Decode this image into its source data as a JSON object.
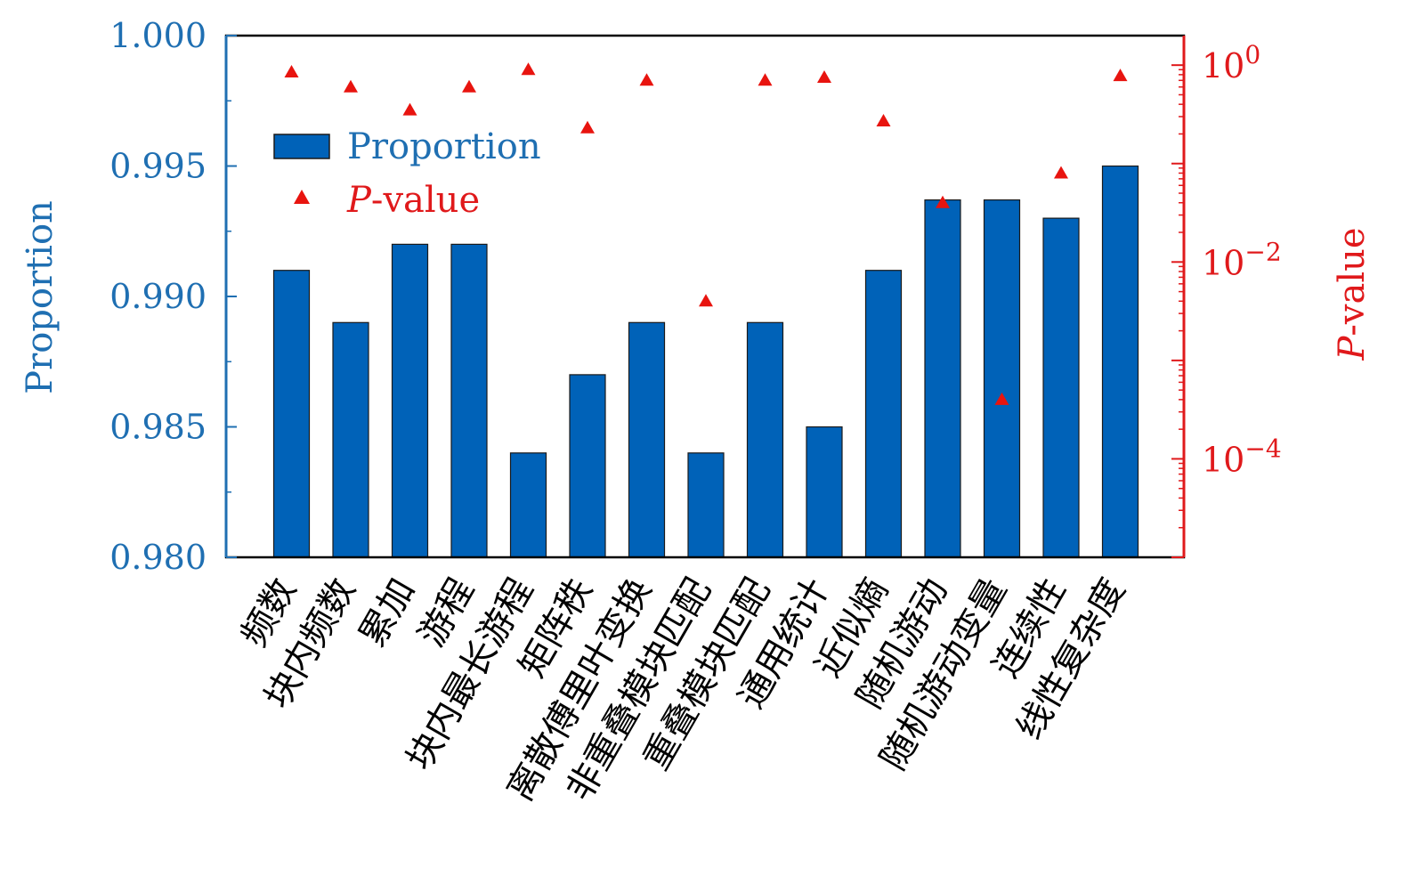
{
  "chart_data": {
    "type": "bar",
    "categories": [
      "频数",
      "块内频数",
      "累加",
      "游程",
      "块内最长游程",
      "矩阵秩",
      "离散傅里叶变换",
      "非重叠模块匹配",
      "重叠模块匹配",
      "通用统计",
      "近似熵",
      "随机游动",
      "随机游动变量",
      "连续性",
      "线性复杂度"
    ],
    "series": [
      {
        "name": "Proportion",
        "type": "bar",
        "axis": "left",
        "values": [
          0.991,
          0.989,
          0.992,
          0.992,
          0.984,
          0.987,
          0.989,
          0.984,
          0.989,
          0.985,
          0.991,
          0.9937,
          0.9937,
          0.993,
          0.995
        ]
      },
      {
        "name": "P-value",
        "type": "scatter",
        "axis": "right",
        "values": [
          0.85,
          0.6,
          0.35,
          0.6,
          0.9,
          0.23,
          0.7,
          0.004,
          0.7,
          0.75,
          0.27,
          0.04,
          0.0004,
          0.08,
          0.78
        ]
      }
    ],
    "ylabel": "Proportion",
    "ylabel_right_italic": "P",
    "ylabel_right_rest": "-value",
    "ylim": [
      0.98,
      1.0
    ],
    "yticks": [
      "0.980",
      "0.985",
      "0.990",
      "0.995",
      "1.000"
    ],
    "ylim_right_log10": [
      -5,
      0.3
    ],
    "yticks_right": [
      {
        "base": "10",
        "exp": "0"
      },
      {
        "base": "10",
        "exp": "−2"
      },
      {
        "base": "10",
        "exp": "−4"
      }
    ],
    "y_right_scale": "log",
    "legend": {
      "position": "upper-left",
      "bar_label": "Proportion",
      "marker_label_italic": "P",
      "marker_label_rest": "-value"
    },
    "colors": {
      "bar": "#0062b8",
      "bar_edge": "#1a1a1a",
      "marker": "#e8140f",
      "left_axis": "#1f6fb2",
      "right_axis": "#e0191b"
    },
    "grid": false
  }
}
